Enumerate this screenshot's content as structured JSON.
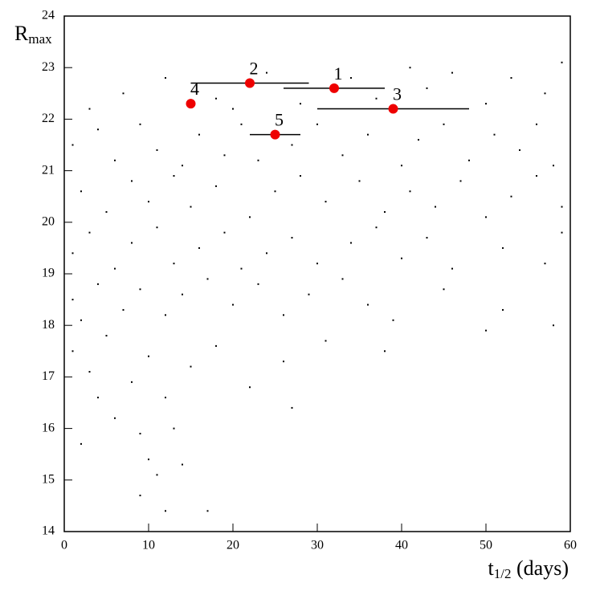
{
  "chart_data": {
    "type": "scatter",
    "xlabel": {
      "main": "t",
      "sub": "1/2",
      "rest": " (days)"
    },
    "ylabel": {
      "main": "R",
      "sub": "max"
    },
    "xlim": [
      0,
      60
    ],
    "ylim": [
      14,
      24
    ],
    "xticks": [
      0,
      10,
      20,
      30,
      40,
      50,
      60
    ],
    "yticks": [
      14,
      15,
      16,
      17,
      18,
      19,
      20,
      21,
      22,
      23,
      24
    ],
    "background": {
      "color": "#000000",
      "x": [
        3,
        7,
        12,
        18,
        24,
        28,
        34,
        37,
        43,
        46,
        50,
        53,
        57,
        59,
        20,
        41,
        1,
        4,
        6,
        9,
        11,
        14,
        16,
        19,
        21,
        23,
        27,
        30,
        33,
        36,
        40,
        42,
        45,
        48,
        51,
        54,
        56,
        58,
        2,
        5,
        8,
        10,
        13,
        15,
        18,
        22,
        25,
        28,
        31,
        35,
        38,
        41,
        44,
        47,
        50,
        53,
        56,
        59,
        1,
        3,
        6,
        8,
        11,
        13,
        16,
        19,
        21,
        24,
        27,
        30,
        34,
        37,
        40,
        43,
        46,
        52,
        57,
        59,
        1,
        2,
        4,
        7,
        9,
        12,
        14,
        17,
        20,
        23,
        26,
        29,
        33,
        36,
        39,
        45,
        52,
        58,
        1,
        3,
        5,
        8,
        10,
        12,
        15,
        18,
        22,
        26,
        31,
        38,
        50,
        27,
        6,
        9,
        2,
        10,
        11,
        14,
        9,
        12,
        17,
        4,
        13
      ],
      "y": [
        22.2,
        22.5,
        22.8,
        22.4,
        22.9,
        22.3,
        22.8,
        22.4,
        22.6,
        22.9,
        22.3,
        22.8,
        22.5,
        23.1,
        22.2,
        23.0,
        21.5,
        21.8,
        21.2,
        21.9,
        21.4,
        21.1,
        21.7,
        21.3,
        21.9,
        21.2,
        21.5,
        21.9,
        21.3,
        21.7,
        21.1,
        21.6,
        21.9,
        21.2,
        21.7,
        21.4,
        21.9,
        21.1,
        20.6,
        20.2,
        20.8,
        20.4,
        20.9,
        20.3,
        20.7,
        20.1,
        20.6,
        20.9,
        20.4,
        20.8,
        20.2,
        20.6,
        20.3,
        20.8,
        20.1,
        20.5,
        20.9,
        20.3,
        19.4,
        19.8,
        19.1,
        19.6,
        19.9,
        19.2,
        19.5,
        19.8,
        19.1,
        19.4,
        19.7,
        19.2,
        19.6,
        19.9,
        19.3,
        19.7,
        19.1,
        19.5,
        19.2,
        19.8,
        18.5,
        18.1,
        18.8,
        18.3,
        18.7,
        18.2,
        18.6,
        18.9,
        18.4,
        18.8,
        18.2,
        18.6,
        18.9,
        18.4,
        18.1,
        18.7,
        18.3,
        18.0,
        17.5,
        17.1,
        17.8,
        16.9,
        17.4,
        16.6,
        17.2,
        17.6,
        16.8,
        17.3,
        17.7,
        17.5,
        17.9,
        16.4,
        16.2,
        15.9,
        15.7,
        15.4,
        15.1,
        15.3,
        14.7,
        14.4,
        14.4,
        16.6,
        16.0
      ]
    },
    "highlighted": {
      "color": "#ee0000",
      "labels": [
        "1",
        "2",
        "3",
        "4",
        "5"
      ],
      "x": [
        32,
        22,
        39,
        15,
        25
      ],
      "y": [
        22.6,
        22.7,
        22.2,
        22.3,
        21.7
      ],
      "xerr": [
        6,
        7,
        9,
        null,
        3
      ]
    }
  }
}
